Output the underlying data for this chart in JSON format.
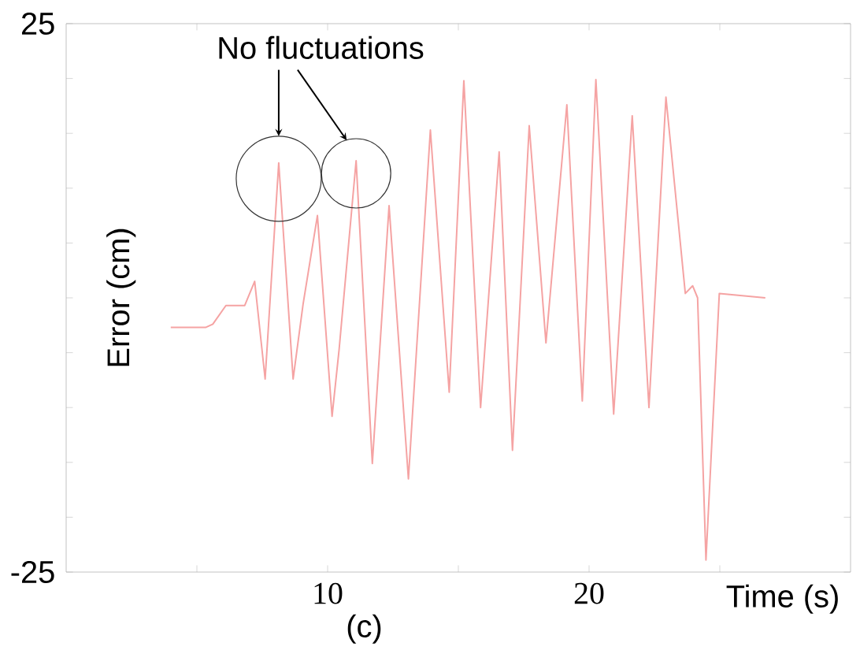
{
  "chart_data": {
    "type": "line",
    "xlabel": "Time (s)",
    "ylabel": "Error (cm)",
    "x": [
      4.0,
      5.33,
      5.61,
      6.11,
      6.83,
      7.21,
      7.61,
      8.13,
      8.68,
      9.06,
      9.61,
      10.17,
      10.44,
      11.09,
      11.71,
      12.35,
      13.09,
      13.93,
      14.65,
      15.21,
      15.85,
      16.56,
      17.07,
      17.71,
      18.35,
      19.15,
      19.74,
      20.26,
      20.94,
      21.65,
      22.29,
      22.94,
      23.68,
      23.96,
      24.15,
      24.47,
      24.98,
      26.74
    ],
    "series": [
      {
        "color": "#f5a3a3",
        "values": [
          -2.7,
          -2.7,
          -2.4,
          -0.7,
          -0.7,
          1.5,
          -7.4,
          12.3,
          -7.4,
          -0.6,
          7.5,
          -10.8,
          -4.7,
          12.5,
          -15.1,
          8.4,
          -16.5,
          15.3,
          -8.6,
          19.8,
          -10.0,
          13.3,
          -13.9,
          15.7,
          -4.1,
          17.6,
          -9.4,
          19.9,
          -10.6,
          16.6,
          -10.0,
          18.3,
          0.4,
          1.1,
          0.0,
          -23.9,
          0.4,
          0.0
        ]
      }
    ],
    "xlim": [
      0,
      30
    ],
    "ylim": [
      -25,
      25
    ],
    "xticks": [
      {
        "value": 5,
        "label": null
      },
      10,
      {
        "value": 15,
        "label": null
      },
      20,
      {
        "value": 25,
        "label": null
      }
    ],
    "yticks": [
      25,
      {
        "value": 20,
        "label": null
      },
      {
        "value": 15,
        "label": null
      },
      {
        "value": 10,
        "label": null
      },
      {
        "value": 5,
        "label": null
      },
      {
        "value": 0,
        "label": null
      },
      {
        "value": -5,
        "label": null
      },
      {
        "value": -10,
        "label": null
      },
      {
        "value": -15,
        "label": null
      },
      {
        "value": -20,
        "label": null
      },
      -25
    ],
    "annotations": [
      "No fluctuations",
      "(c)"
    ]
  }
}
